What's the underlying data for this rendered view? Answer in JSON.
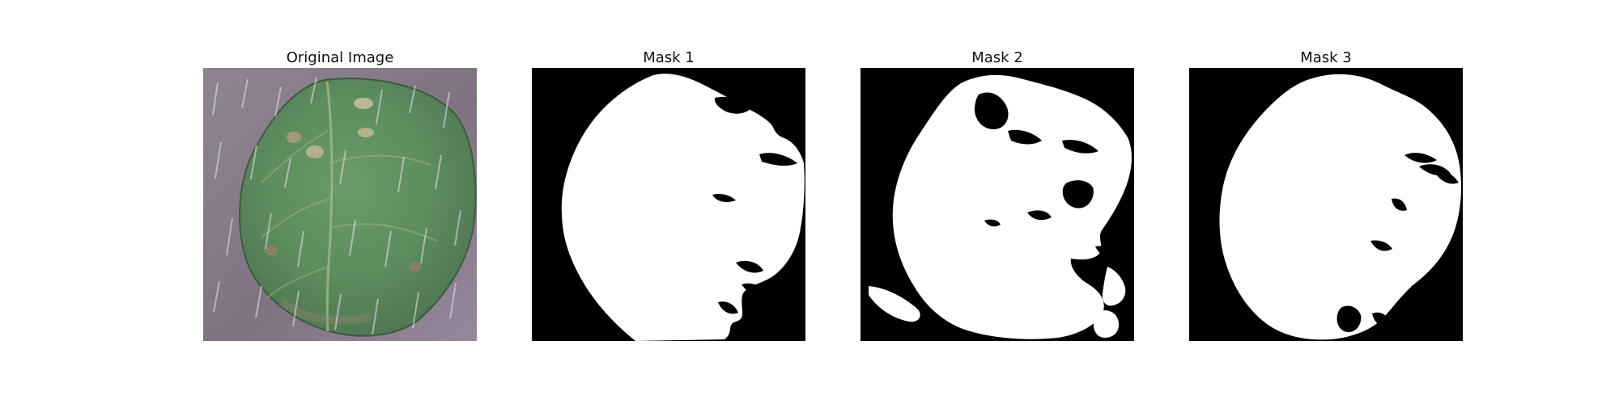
{
  "figure": {
    "panels": [
      {
        "title": "Original Image",
        "kind": "photo"
      },
      {
        "title": "Mask 1",
        "kind": "mask"
      },
      {
        "title": "Mask 2",
        "kind": "mask"
      },
      {
        "title": "Mask 3",
        "kind": "mask"
      }
    ],
    "colors": {
      "background": "#ffffff",
      "mask_background": "#000000",
      "mask_foreground": "#ffffff",
      "leaf_green": "#5f8f62",
      "leaf_dark": "#496f4a",
      "photo_background": "#8b7d8e"
    }
  }
}
